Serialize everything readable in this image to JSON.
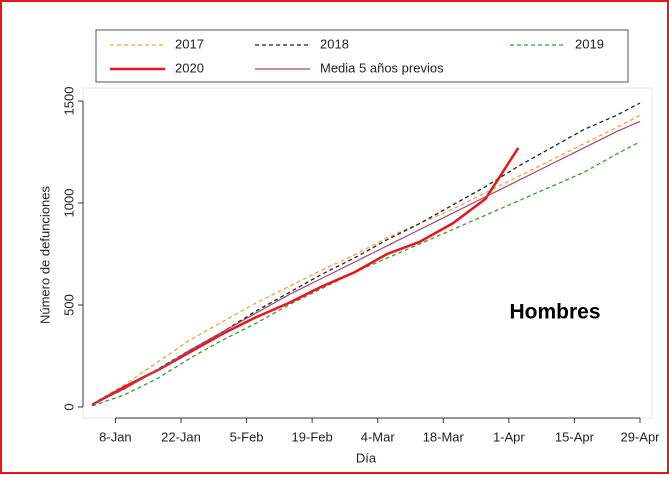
{
  "chart_data": {
    "type": "line",
    "ylabel": "Número de defunciones",
    "xlabel": "Día",
    "annotation": "Hombres",
    "x": [
      3,
      10,
      17,
      24,
      31,
      38,
      45,
      52,
      59,
      66,
      73,
      80,
      87,
      94,
      101,
      108,
      115,
      120
    ],
    "xlim": [
      3,
      120
    ],
    "xticks": [
      {
        "value": 8,
        "label": "8-Jan"
      },
      {
        "value": 22,
        "label": "22-Jan"
      },
      {
        "value": 36,
        "label": "5-Feb"
      },
      {
        "value": 50,
        "label": "19-Feb"
      },
      {
        "value": 64,
        "label": "4-Mar"
      },
      {
        "value": 78,
        "label": "18-Mar"
      },
      {
        "value": 92,
        "label": "1-Apr"
      },
      {
        "value": 106,
        "label": "15-Apr"
      },
      {
        "value": 120,
        "label": "29-Apr"
      }
    ],
    "ylim": [
      0,
      1500
    ],
    "yticks": [
      0,
      500,
      1000,
      1500
    ],
    "series": [
      {
        "name": "2017",
        "color": "#f5a04a",
        "style": "dashed",
        "values": [
          15,
          110,
          220,
          330,
          420,
          510,
          590,
          670,
          745,
          830,
          900,
          970,
          1050,
          1130,
          1210,
          1290,
          1370,
          1430
        ]
      },
      {
        "name": "2018",
        "color": "#222222",
        "style": "dashed",
        "values": [
          10,
          90,
          185,
          280,
          370,
          470,
          560,
          650,
          730,
          820,
          900,
          990,
          1080,
          1180,
          1270,
          1360,
          1430,
          1490
        ]
      },
      {
        "name": "2019",
        "color": "#3a9a3a",
        "style": "dashed",
        "values": [
          5,
          60,
          140,
          240,
          330,
          410,
          500,
          580,
          660,
          730,
          800,
          870,
          940,
          1010,
          1080,
          1150,
          1240,
          1300
        ]
      },
      {
        "name": "2020",
        "color": "#e8161b",
        "style": "thick",
        "values": [
          10,
          100,
          180,
          270,
          360,
          440,
          510,
          590,
          660,
          750,
          810,
          900,
          1020,
          1270,
          null,
          null,
          null,
          null
        ]
      },
      {
        "name": "Media 5 años previos",
        "color": "#a04a6a",
        "style": "thin",
        "values": [
          10,
          90,
          180,
          280,
          370,
          460,
          550,
          630,
          710,
          790,
          870,
          950,
          1030,
          1110,
          1190,
          1270,
          1350,
          1400
        ]
      }
    ]
  }
}
